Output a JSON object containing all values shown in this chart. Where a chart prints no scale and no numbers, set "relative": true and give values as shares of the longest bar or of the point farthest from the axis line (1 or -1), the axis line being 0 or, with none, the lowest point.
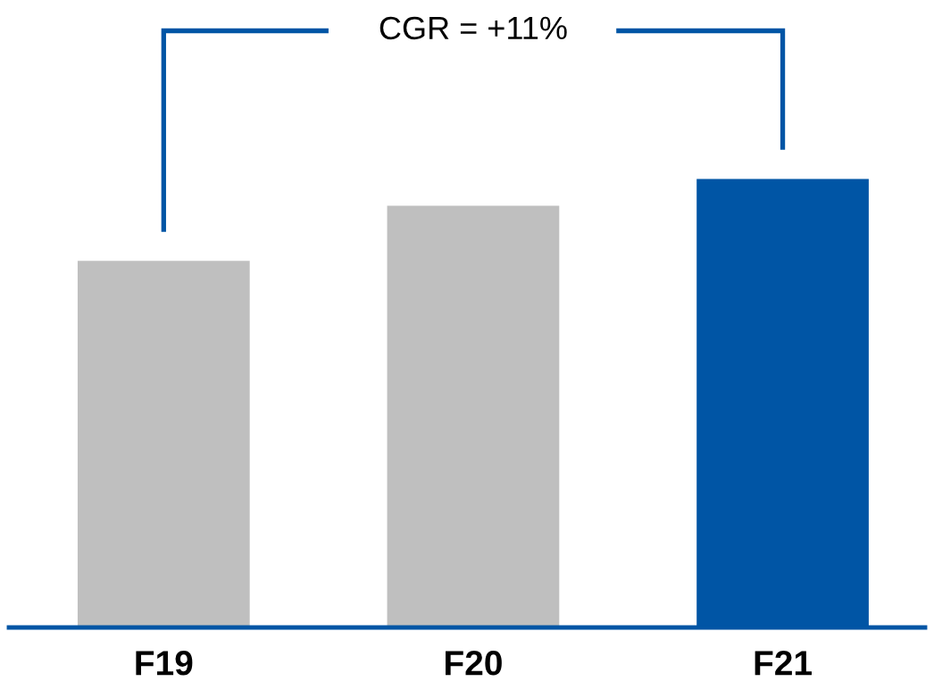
{
  "chart_data": {
    "type": "bar",
    "relative": true,
    "categories": [
      "F19",
      "F20",
      "F21"
    ],
    "values": [
      0.817,
      0.94,
      1
    ],
    "colors": [
      "#bfbfbf",
      "#bfbfbf",
      "#0055a5"
    ],
    "annotations": [
      "CGR = +11%"
    ],
    "grid": false,
    "legend": false
  }
}
